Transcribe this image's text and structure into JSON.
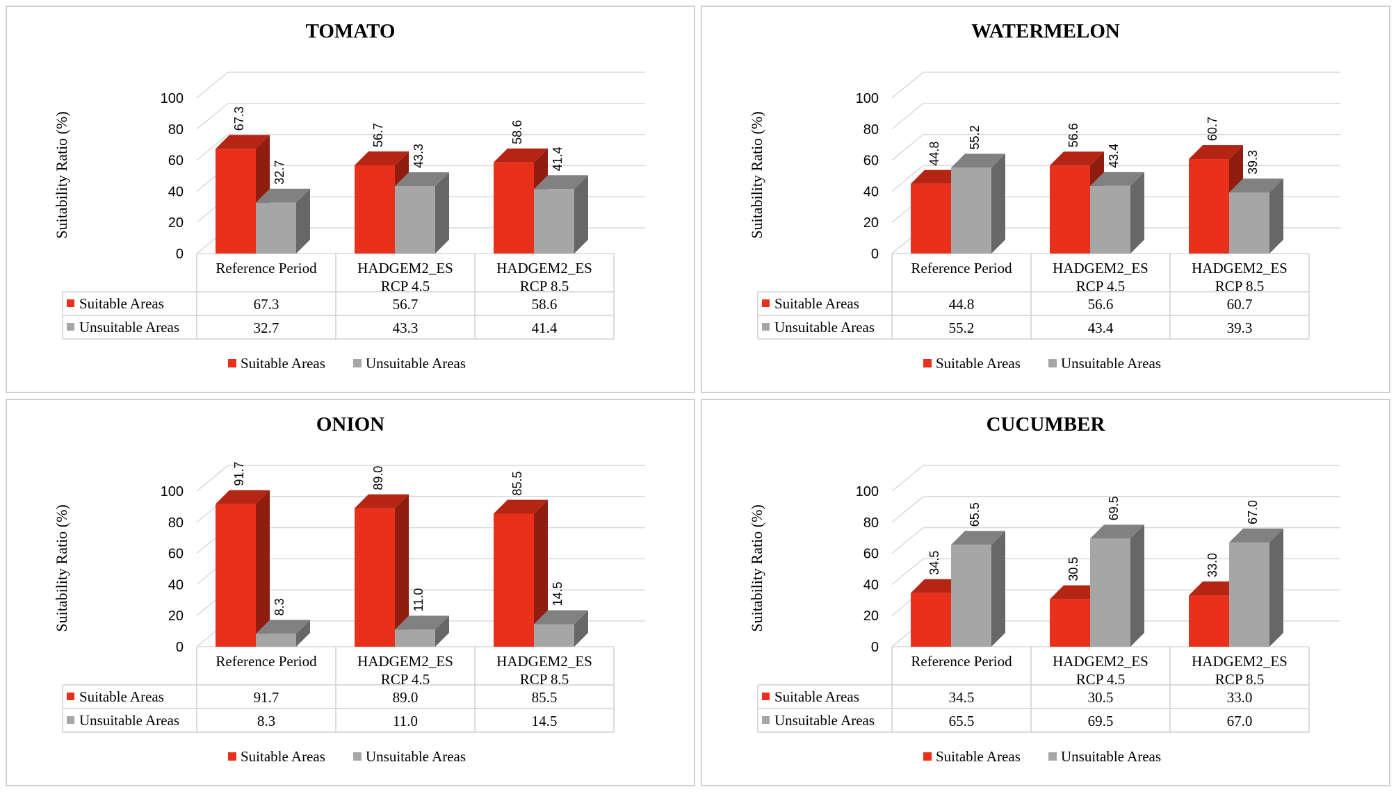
{
  "chart_data": [
    {
      "type": "bar",
      "title": "TOMATO",
      "ylabel": "Suitability Ratio (%)",
      "ylim": [
        0,
        100
      ],
      "yticks": [
        "0",
        "20",
        "40",
        "60",
        "80",
        "100"
      ],
      "categories": [
        [
          "Reference Period"
        ],
        [
          "HADGEM2_ES",
          "RCP 4.5"
        ],
        [
          "HADGEM2_ES",
          "RCP 8.5"
        ]
      ],
      "series": [
        {
          "name": "Suitable Areas",
          "values": [
            67.3,
            56.7,
            58.6
          ],
          "labels": [
            "67.3",
            "56.7",
            "58.6"
          ],
          "color": "#e8301a"
        },
        {
          "name": "Unsuitable Areas",
          "values": [
            32.7,
            43.3,
            41.4
          ],
          "labels": [
            "32.7",
            "43.3",
            "41.4"
          ],
          "color": "#a6a6a6"
        }
      ]
    },
    {
      "type": "bar",
      "title": "WATERMELON",
      "ylabel": "Suitability Ratio (%)",
      "ylim": [
        0,
        100
      ],
      "yticks": [
        "0",
        "20",
        "40",
        "60",
        "80",
        "100"
      ],
      "categories": [
        [
          "Reference Period"
        ],
        [
          "HADGEM2_ES",
          "RCP 4.5"
        ],
        [
          "HADGEM2_ES",
          "RCP 8.5"
        ]
      ],
      "series": [
        {
          "name": "Suitable Areas",
          "values": [
            44.8,
            56.6,
            60.7
          ],
          "labels": [
            "44.8",
            "56.6",
            "60.7"
          ],
          "color": "#e8301a"
        },
        {
          "name": "Unsuitable Areas",
          "values": [
            55.2,
            43.4,
            39.3
          ],
          "labels": [
            "55.2",
            "43.4",
            "39.3"
          ],
          "color": "#a6a6a6"
        }
      ]
    },
    {
      "type": "bar",
      "title": "ONION",
      "ylabel": "Suitability Ratio (%)",
      "ylim": [
        0,
        100
      ],
      "yticks": [
        "0",
        "20",
        "40",
        "60",
        "80",
        "100"
      ],
      "categories": [
        [
          "Reference Period"
        ],
        [
          "HADGEM2_ES",
          "RCP 4.5"
        ],
        [
          "HADGEM2_ES",
          "RCP 8.5"
        ]
      ],
      "series": [
        {
          "name": "Suitable Areas",
          "values": [
            91.7,
            89.0,
            85.5
          ],
          "labels": [
            "91.7",
            "89.0",
            "85.5"
          ],
          "color": "#e8301a"
        },
        {
          "name": "Unsuitable Areas",
          "values": [
            8.3,
            11.0,
            14.5
          ],
          "labels": [
            "8.3",
            "11.0",
            "14.5"
          ],
          "color": "#a6a6a6"
        }
      ]
    },
    {
      "type": "bar",
      "title": "CUCUMBER",
      "ylabel": "Suitability Ratio (%)",
      "ylim": [
        0,
        100
      ],
      "yticks": [
        "0",
        "20",
        "40",
        "60",
        "80",
        "100"
      ],
      "categories": [
        [
          "Reference Period"
        ],
        [
          "HADGEM2_ES",
          "RCP 4.5"
        ],
        [
          "HADGEM2_ES",
          "RCP 8.5"
        ]
      ],
      "series": [
        {
          "name": "Suitable Areas",
          "values": [
            34.5,
            30.5,
            33.0
          ],
          "labels": [
            "34.5",
            "30.5",
            "33.0"
          ],
          "color": "#e8301a"
        },
        {
          "name": "Unsuitable Areas",
          "values": [
            65.5,
            69.5,
            67.0
          ],
          "labels": [
            "65.5",
            "69.5",
            "67.0"
          ],
          "color": "#a6a6a6"
        }
      ]
    }
  ]
}
